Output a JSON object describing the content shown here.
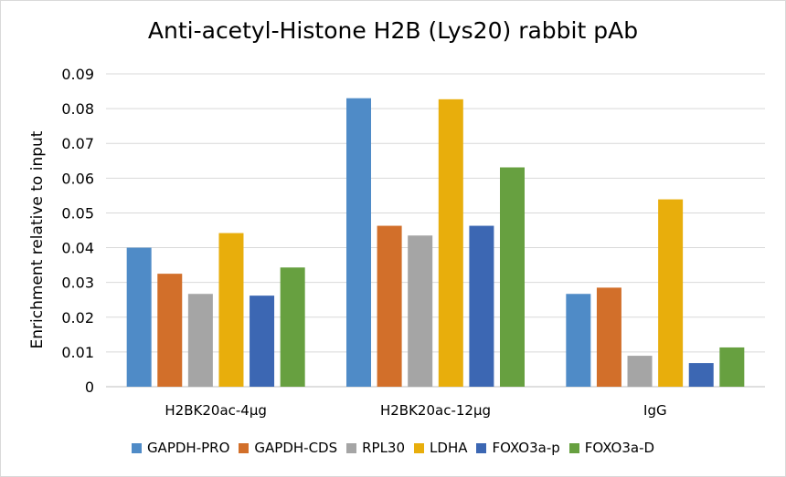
{
  "chart_data": {
    "type": "bar",
    "title": "Anti-acetyl-Histone H2B (Lys20) rabbit pAb",
    "xlabel": "",
    "ylabel": "Enrichment relative to input",
    "ylim": [
      0,
      0.09
    ],
    "yticks": [
      "0",
      "0.01",
      "0.02",
      "0.03",
      "0.04",
      "0.05",
      "0.06",
      "0.07",
      "0.08",
      "0.09"
    ],
    "grid": true,
    "legend_position": "bottom",
    "categories": [
      "H2BK20ac-4µg",
      "H2BK20ac-12µg",
      "IgG"
    ],
    "series": [
      {
        "name": "GAPDH-PRO",
        "color": "#4F8BC7",
        "values": [
          0.04,
          0.083,
          0.0267
        ]
      },
      {
        "name": "GAPDH-CDS",
        "color": "#D26F2A",
        "values": [
          0.0325,
          0.0463,
          0.0285
        ]
      },
      {
        "name": "RPL30",
        "color": "#A5A5A5",
        "values": [
          0.0267,
          0.0435,
          0.0089
        ]
      },
      {
        "name": "LDHA",
        "color": "#E8AE0C",
        "values": [
          0.0442,
          0.0827,
          0.0539
        ]
      },
      {
        "name": "FOXO3a-p",
        "color": "#3C67B3",
        "values": [
          0.0262,
          0.0463,
          0.0068
        ]
      },
      {
        "name": "FOXO3a-D",
        "color": "#67A040",
        "values": [
          0.0343,
          0.0631,
          0.0113
        ]
      }
    ]
  }
}
